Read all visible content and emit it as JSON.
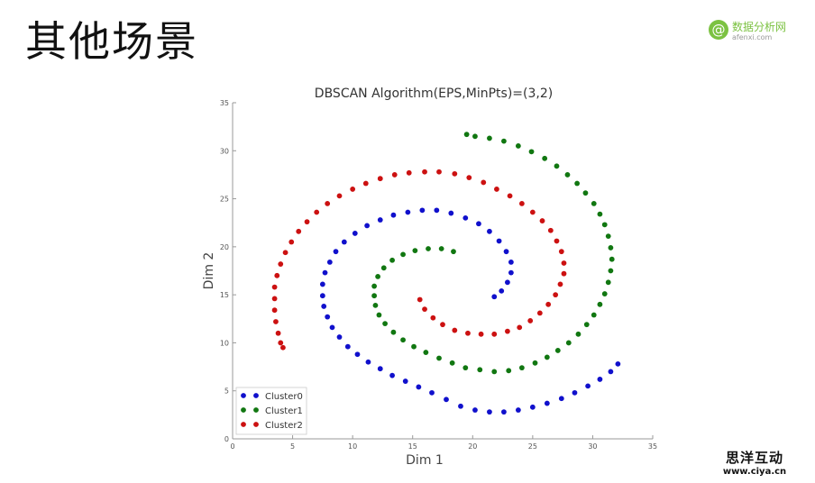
{
  "slide": {
    "title": "其他场景"
  },
  "logo": {
    "name": "数据分析网",
    "url": "afenxi.com",
    "mark": "@",
    "color": "#7cc242"
  },
  "watermark": {
    "name": "思洋互动",
    "url": "www.ciya.cn"
  },
  "chart_data": {
    "type": "scatter",
    "title": "DBSCAN Algorithm(EPS,MinPts)=(3,2)",
    "xlabel": "Dim 1",
    "ylabel": "Dim 2",
    "xlim": [
      0,
      35
    ],
    "ylim": [
      0,
      35
    ],
    "xticks": [
      0,
      5,
      10,
      15,
      20,
      25,
      30,
      35
    ],
    "yticks": [
      0,
      5,
      10,
      15,
      20,
      25,
      30,
      35
    ],
    "grid": false,
    "legend_position": "lower-left",
    "series": [
      {
        "name": "Cluster0",
        "color": "#1010cc",
        "points": [
          [
            21.8,
            14.8
          ],
          [
            22.4,
            15.4
          ],
          [
            22.9,
            16.3
          ],
          [
            23.2,
            17.3
          ],
          [
            23.2,
            18.4
          ],
          [
            22.8,
            19.5
          ],
          [
            22.2,
            20.6
          ],
          [
            21.4,
            21.6
          ],
          [
            20.5,
            22.4
          ],
          [
            19.4,
            23.0
          ],
          [
            18.2,
            23.5
          ],
          [
            17.0,
            23.8
          ],
          [
            15.8,
            23.8
          ],
          [
            14.6,
            23.6
          ],
          [
            13.4,
            23.3
          ],
          [
            12.3,
            22.8
          ],
          [
            11.2,
            22.2
          ],
          [
            10.2,
            21.4
          ],
          [
            9.3,
            20.5
          ],
          [
            8.6,
            19.5
          ],
          [
            8.1,
            18.4
          ],
          [
            7.7,
            17.3
          ],
          [
            7.5,
            16.1
          ],
          [
            7.5,
            14.9
          ],
          [
            7.6,
            13.8
          ],
          [
            7.9,
            12.7
          ],
          [
            8.3,
            11.6
          ],
          [
            8.9,
            10.6
          ],
          [
            9.6,
            9.6
          ],
          [
            10.4,
            8.8
          ],
          [
            11.3,
            8.0
          ],
          [
            12.3,
            7.3
          ],
          [
            13.3,
            6.6
          ],
          [
            14.4,
            6.0
          ],
          [
            15.5,
            5.4
          ],
          [
            16.6,
            4.8
          ],
          [
            17.8,
            4.1
          ],
          [
            19.0,
            3.4
          ],
          [
            20.2,
            3.0
          ],
          [
            21.4,
            2.8
          ],
          [
            22.6,
            2.8
          ],
          [
            23.8,
            3.0
          ],
          [
            25.0,
            3.3
          ],
          [
            26.2,
            3.7
          ],
          [
            27.4,
            4.2
          ],
          [
            28.5,
            4.8
          ],
          [
            29.6,
            5.5
          ],
          [
            30.6,
            6.2
          ],
          [
            31.5,
            7.0
          ],
          [
            32.1,
            7.8
          ]
        ]
      },
      {
        "name": "Cluster1",
        "color": "#117711",
        "points": [
          [
            18.4,
            19.5
          ],
          [
            17.4,
            19.8
          ],
          [
            16.3,
            19.8
          ],
          [
            15.2,
            19.6
          ],
          [
            14.2,
            19.2
          ],
          [
            13.3,
            18.6
          ],
          [
            12.6,
            17.8
          ],
          [
            12.1,
            16.9
          ],
          [
            11.8,
            15.9
          ],
          [
            11.8,
            14.9
          ],
          [
            11.9,
            13.9
          ],
          [
            12.2,
            12.9
          ],
          [
            12.7,
            12.0
          ],
          [
            13.4,
            11.1
          ],
          [
            14.2,
            10.3
          ],
          [
            15.1,
            9.6
          ],
          [
            16.1,
            9.0
          ],
          [
            17.2,
            8.4
          ],
          [
            18.3,
            7.9
          ],
          [
            19.4,
            7.4
          ],
          [
            20.6,
            7.2
          ],
          [
            21.8,
            7.0
          ],
          [
            23.0,
            7.1
          ],
          [
            24.1,
            7.4
          ],
          [
            25.2,
            7.9
          ],
          [
            26.2,
            8.5
          ],
          [
            27.1,
            9.2
          ],
          [
            28.0,
            10.0
          ],
          [
            28.8,
            10.9
          ],
          [
            29.5,
            11.9
          ],
          [
            30.1,
            12.9
          ],
          [
            30.6,
            14.0
          ],
          [
            31.0,
            15.1
          ],
          [
            31.3,
            16.3
          ],
          [
            31.5,
            17.5
          ],
          [
            31.6,
            18.7
          ],
          [
            31.5,
            19.9
          ],
          [
            31.3,
            21.1
          ],
          [
            31.0,
            22.3
          ],
          [
            30.6,
            23.4
          ],
          [
            30.1,
            24.5
          ],
          [
            29.4,
            25.6
          ],
          [
            28.7,
            26.6
          ],
          [
            27.9,
            27.5
          ],
          [
            27.0,
            28.4
          ],
          [
            26.0,
            29.2
          ],
          [
            24.9,
            29.9
          ],
          [
            23.8,
            30.5
          ],
          [
            22.6,
            31.0
          ],
          [
            21.4,
            31.3
          ],
          [
            20.2,
            31.5
          ],
          [
            19.5,
            31.7
          ]
        ]
      },
      {
        "name": "Cluster2",
        "color": "#cc1111",
        "points": [
          [
            15.6,
            14.5
          ],
          [
            16.0,
            13.5
          ],
          [
            16.7,
            12.6
          ],
          [
            17.5,
            11.9
          ],
          [
            18.5,
            11.3
          ],
          [
            19.6,
            11.0
          ],
          [
            20.7,
            10.9
          ],
          [
            21.8,
            10.9
          ],
          [
            22.9,
            11.2
          ],
          [
            23.9,
            11.6
          ],
          [
            24.8,
            12.3
          ],
          [
            25.6,
            13.1
          ],
          [
            26.3,
            14.0
          ],
          [
            26.9,
            15.0
          ],
          [
            27.3,
            16.1
          ],
          [
            27.6,
            17.2
          ],
          [
            27.6,
            18.3
          ],
          [
            27.4,
            19.5
          ],
          [
            27.0,
            20.6
          ],
          [
            26.5,
            21.7
          ],
          [
            25.8,
            22.7
          ],
          [
            25.0,
            23.6
          ],
          [
            24.1,
            24.5
          ],
          [
            23.1,
            25.3
          ],
          [
            22.0,
            26.0
          ],
          [
            20.9,
            26.7
          ],
          [
            19.7,
            27.2
          ],
          [
            18.5,
            27.6
          ],
          [
            17.2,
            27.8
          ],
          [
            16.0,
            27.8
          ],
          [
            14.7,
            27.7
          ],
          [
            13.5,
            27.5
          ],
          [
            12.3,
            27.1
          ],
          [
            11.1,
            26.6
          ],
          [
            10.0,
            26.0
          ],
          [
            8.9,
            25.3
          ],
          [
            7.9,
            24.5
          ],
          [
            7.0,
            23.6
          ],
          [
            6.2,
            22.6
          ],
          [
            5.5,
            21.6
          ],
          [
            4.9,
            20.5
          ],
          [
            4.4,
            19.4
          ],
          [
            4.0,
            18.2
          ],
          [
            3.7,
            17.0
          ],
          [
            3.5,
            15.8
          ],
          [
            3.5,
            14.6
          ],
          [
            3.5,
            13.4
          ],
          [
            3.6,
            12.2
          ],
          [
            3.8,
            11.0
          ],
          [
            4.0,
            10.0
          ],
          [
            4.2,
            9.5
          ]
        ]
      }
    ]
  }
}
